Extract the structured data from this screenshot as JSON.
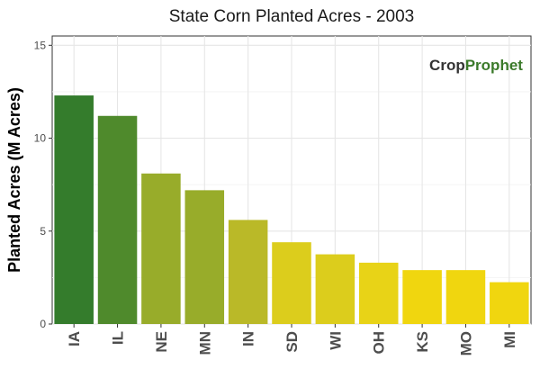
{
  "logo": {
    "part1": "Crop",
    "part2": "Prophet",
    "part1_color": "#333333",
    "part2_color": "#3b7a2a"
  },
  "chart_data": {
    "type": "bar",
    "title": "State Corn Planted Acres - 2003",
    "xlabel": "",
    "ylabel": "Planted Acres (M Acres)",
    "ylim": [
      0,
      15.5
    ],
    "yticks": [
      0,
      5,
      10,
      15
    ],
    "grid": true,
    "categories": [
      "IA",
      "IL",
      "NE",
      "MN",
      "IN",
      "SD",
      "WI",
      "OH",
      "KS",
      "MO",
      "MI"
    ],
    "values": [
      12.3,
      11.2,
      8.1,
      7.2,
      5.6,
      4.4,
      3.75,
      3.3,
      2.9,
      2.9,
      2.25
    ],
    "colors": [
      "#347c2c",
      "#4f8a2c",
      "#98ac2a",
      "#98ac2a",
      "#bab928",
      "#dccd1c",
      "#dccd1c",
      "#e8d317",
      "#f0d60f",
      "#f0d60f",
      "#f0d60f"
    ]
  }
}
